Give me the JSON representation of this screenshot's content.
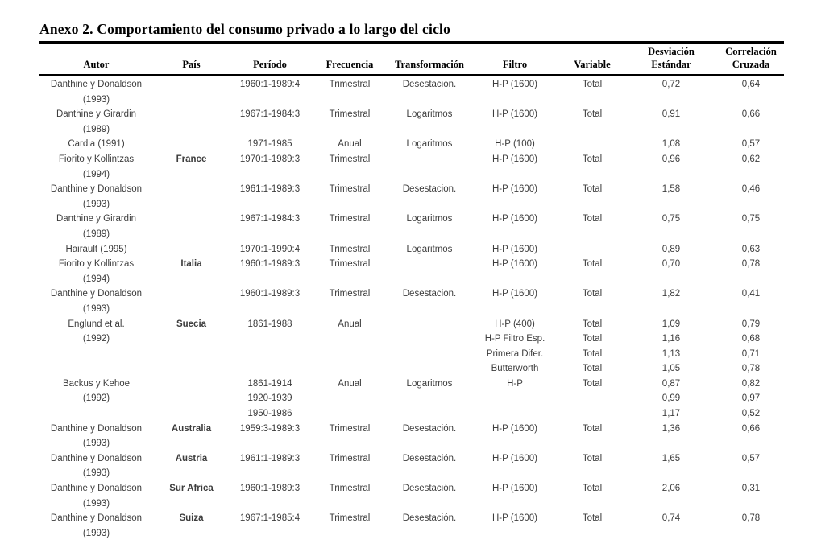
{
  "title": "Anexo 2. Comportamiento del consumo privado a lo largo del ciclo",
  "table": {
    "headers": {
      "autor": "Autor",
      "pais": "País",
      "periodo": "Período",
      "frecuencia": "Frecuencia",
      "transformacion": "Transformación",
      "filtro": "Filtro",
      "variable": "Variable",
      "desviacion_line1": "Desviación",
      "desviacion_line2": "Estándar",
      "correlacion_line1": "Correlación",
      "correlacion_line2": "Cruzada"
    },
    "rows": [
      {
        "autor": [
          "Danthine y Donaldson",
          "(1993)"
        ],
        "pais": [
          ""
        ],
        "periodo": [
          "1960:1-1989:4"
        ],
        "frecuencia": [
          "Trimestral"
        ],
        "transformacion": [
          "Desestacion."
        ],
        "filtro": [
          "H-P (1600)"
        ],
        "variable": [
          "Total"
        ],
        "desviacion": [
          "0,72"
        ],
        "correlacion": [
          "0,64"
        ]
      },
      {
        "autor": [
          "Danthine y Girardin",
          "(1989)"
        ],
        "pais": [
          ""
        ],
        "periodo": [
          "1967:1-1984:3"
        ],
        "frecuencia": [
          "Trimestral"
        ],
        "transformacion": [
          "Logaritmos"
        ],
        "filtro": [
          "H-P (1600)"
        ],
        "variable": [
          "Total"
        ],
        "desviacion": [
          "0,91"
        ],
        "correlacion": [
          "0,66"
        ]
      },
      {
        "autor": [
          "Cardia (1991)"
        ],
        "pais": [
          ""
        ],
        "periodo": [
          "1971-1985"
        ],
        "frecuencia": [
          "Anual"
        ],
        "transformacion": [
          "Logaritmos"
        ],
        "filtro": [
          "H-P (100)"
        ],
        "variable": [
          ""
        ],
        "desviacion": [
          "1,08"
        ],
        "correlacion": [
          "0,57"
        ]
      },
      {
        "autor": [
          "Fiorito y Kollintzas",
          "(1994)"
        ],
        "pais": [
          "France"
        ],
        "periodo": [
          "1970:1-1989:3"
        ],
        "frecuencia": [
          "Trimestral"
        ],
        "transformacion": [
          ""
        ],
        "filtro": [
          "H-P (1600)"
        ],
        "variable": [
          "Total"
        ],
        "desviacion": [
          "0,96"
        ],
        "correlacion": [
          "0,62"
        ]
      },
      {
        "autor": [
          "Danthine y Donaldson",
          "(1993)"
        ],
        "pais": [
          ""
        ],
        "periodo": [
          "1961:1-1989:3"
        ],
        "frecuencia": [
          "Trimestral"
        ],
        "transformacion": [
          "Desestacion."
        ],
        "filtro": [
          "H-P (1600)"
        ],
        "variable": [
          "Total"
        ],
        "desviacion": [
          "1,58"
        ],
        "correlacion": [
          "0,46"
        ]
      },
      {
        "autor": [
          "Danthine y Girardin",
          "(1989)"
        ],
        "pais": [
          ""
        ],
        "periodo": [
          "1967:1-1984:3"
        ],
        "frecuencia": [
          "Trimestral"
        ],
        "transformacion": [
          "Logaritmos"
        ],
        "filtro": [
          "H-P (1600)"
        ],
        "variable": [
          "Total"
        ],
        "desviacion": [
          "0,75"
        ],
        "correlacion": [
          "0,75"
        ]
      },
      {
        "autor": [
          "Hairault (1995)"
        ],
        "pais": [
          ""
        ],
        "periodo": [
          "1970:1-1990:4"
        ],
        "frecuencia": [
          "Trimestral"
        ],
        "transformacion": [
          "Logaritmos"
        ],
        "filtro": [
          "H-P (1600)"
        ],
        "variable": [
          ""
        ],
        "desviacion": [
          "0,89"
        ],
        "correlacion": [
          "0,63"
        ]
      },
      {
        "autor": [
          "Fiorito y Kollintzas",
          "(1994)"
        ],
        "pais": [
          "Italia"
        ],
        "periodo": [
          "1960:1-1989:3"
        ],
        "frecuencia": [
          "Trimestral"
        ],
        "transformacion": [
          ""
        ],
        "filtro": [
          "H-P (1600)"
        ],
        "variable": [
          "Total"
        ],
        "desviacion": [
          "0,70"
        ],
        "correlacion": [
          "0,78"
        ]
      },
      {
        "autor": [
          "Danthine y Donaldson",
          "(1993)"
        ],
        "pais": [
          ""
        ],
        "periodo": [
          "1960:1-1989:3"
        ],
        "frecuencia": [
          "Trimestral"
        ],
        "transformacion": [
          "Desestacion."
        ],
        "filtro": [
          "H-P (1600)"
        ],
        "variable": [
          "Total"
        ],
        "desviacion": [
          "1,82"
        ],
        "correlacion": [
          "0,41"
        ]
      },
      {
        "autor": [
          "Englund et al.",
          "(1992)"
        ],
        "pais": [
          "Suecia"
        ],
        "periodo": [
          "1861-1988"
        ],
        "frecuencia": [
          "Anual"
        ],
        "transformacion": [
          ""
        ],
        "filtro": [
          "H-P (400)",
          "H-P Filtro Esp.",
          "Primera Difer.",
          "Butterworth"
        ],
        "variable": [
          "Total",
          "Total",
          "Total",
          "Total"
        ],
        "desviacion": [
          "1,09",
          "1,16",
          "1,13",
          "1,05"
        ],
        "correlacion": [
          "0,79",
          "0,68",
          "0,71",
          "0,78"
        ]
      },
      {
        "autor": [
          "Backus y Kehoe",
          "(1992)"
        ],
        "pais": [
          ""
        ],
        "periodo": [
          "1861-1914",
          "1920-1939",
          "1950-1986"
        ],
        "frecuencia": [
          "Anual"
        ],
        "transformacion": [
          "Logaritmos"
        ],
        "filtro": [
          "H-P"
        ],
        "variable": [
          "Total"
        ],
        "desviacion": [
          "0,87",
          "0,99",
          "1,17"
        ],
        "correlacion": [
          "0,82",
          "0,97",
          "0,52"
        ]
      },
      {
        "autor": [
          "Danthine y Donaldson",
          "(1993)"
        ],
        "pais": [
          "Australia"
        ],
        "periodo": [
          "1959:3-1989:3"
        ],
        "frecuencia": [
          "Trimestral"
        ],
        "transformacion": [
          "Desestación."
        ],
        "filtro": [
          "H-P (1600)"
        ],
        "variable": [
          "Total"
        ],
        "desviacion": [
          "1,36"
        ],
        "correlacion": [
          "0,66"
        ]
      },
      {
        "autor": [
          "Danthine y Donaldson",
          "(1993)"
        ],
        "pais": [
          "Austria"
        ],
        "periodo": [
          "1961:1-1989:3"
        ],
        "frecuencia": [
          "Trimestral"
        ],
        "transformacion": [
          "Desestación."
        ],
        "filtro": [
          "H-P (1600)"
        ],
        "variable": [
          "Total"
        ],
        "desviacion": [
          "1,65"
        ],
        "correlacion": [
          "0,57"
        ]
      },
      {
        "autor": [
          "Danthine y Donaldson",
          "(1993)"
        ],
        "pais": [
          "Sur Africa"
        ],
        "periodo": [
          "1960:1-1989:3"
        ],
        "frecuencia": [
          "Trimestral"
        ],
        "transformacion": [
          "Desestación."
        ],
        "filtro": [
          "H-P (1600)"
        ],
        "variable": [
          "Total"
        ],
        "desviacion": [
          "2,06"
        ],
        "correlacion": [
          "0,31"
        ]
      },
      {
        "autor": [
          "Danthine y Donaldson",
          "(1993)"
        ],
        "pais": [
          "Suiza"
        ],
        "periodo": [
          "1967:1-1985:4"
        ],
        "frecuencia": [
          "Trimestral"
        ],
        "transformacion": [
          "Desestación."
        ],
        "filtro": [
          "H-P (1600)"
        ],
        "variable": [
          "Total"
        ],
        "desviacion": [
          "0,74"
        ],
        "correlacion": [
          "0,78"
        ]
      }
    ]
  }
}
